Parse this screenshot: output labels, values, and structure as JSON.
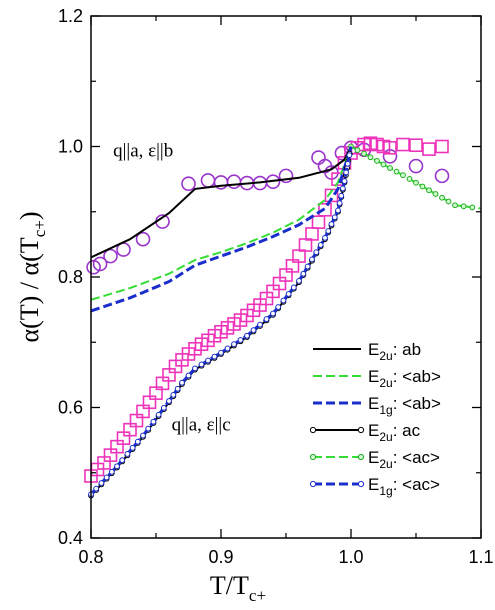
{
  "chart_data": {
    "type": "line",
    "xlabel": "T/T",
    "xlabel_sub": "c+",
    "ylabel": "α(T) / α(T",
    "ylabel_sub": "c+",
    "ylabel_close": ")",
    "xlim": [
      0.8,
      1.1
    ],
    "ylim": [
      0.4,
      1.2
    ],
    "xticks": [
      "0.8",
      "0.9",
      "1.0",
      "1.1"
    ],
    "yticks": [
      "0.4",
      "0.6",
      "0.8",
      "1.0",
      "1.2"
    ],
    "grid": false,
    "legend_position": "bottom-right",
    "annotations": [
      {
        "text": "q||a, ε||b",
        "x": 0.817,
        "y": 0.985
      },
      {
        "text": "q||a, ε||c",
        "x": 0.862,
        "y": 0.565
      }
    ],
    "series": [
      {
        "legend_base": "E",
        "legend_sub": "2u",
        "legend_rest": ": ab",
        "color": "#000000",
        "dash": "solid",
        "marker": "none",
        "x": [
          0.8,
          0.83,
          0.86,
          0.88,
          0.9,
          0.93,
          0.96,
          0.985,
          0.995,
          1.0
        ],
        "y": [
          0.83,
          0.858,
          0.898,
          0.935,
          0.94,
          0.945,
          0.952,
          0.965,
          0.98,
          1.0
        ]
      },
      {
        "legend_base": "E",
        "legend_sub": "2u",
        "legend_rest": ": <ab>",
        "color": "#33dd33",
        "dash": "dashed",
        "marker": "none",
        "x": [
          0.8,
          0.83,
          0.86,
          0.88,
          0.9,
          0.92,
          0.94,
          0.96,
          0.98,
          0.99,
          1.0
        ],
        "y": [
          0.765,
          0.783,
          0.805,
          0.826,
          0.838,
          0.852,
          0.868,
          0.888,
          0.918,
          0.945,
          1.0
        ]
      },
      {
        "legend_base": "E",
        "legend_sub": "1g",
        "legend_rest": ": <ab>",
        "color": "#1a2ecc",
        "dash": "dashed",
        "marker": "none",
        "x": [
          0.8,
          0.83,
          0.86,
          0.88,
          0.9,
          0.92,
          0.94,
          0.96,
          0.98,
          0.99,
          1.0
        ],
        "y": [
          0.748,
          0.768,
          0.793,
          0.818,
          0.832,
          0.846,
          0.862,
          0.88,
          0.905,
          0.935,
          1.0
        ]
      },
      {
        "legend_base": "E",
        "legend_sub": "2u",
        "legend_rest": ": ac",
        "color": "#000000",
        "dash": "solid",
        "marker": "circle-open",
        "x": [
          0.8,
          0.82,
          0.84,
          0.86,
          0.87,
          0.88,
          0.9,
          0.92,
          0.94,
          0.96,
          0.98,
          0.99,
          0.995,
          1.0
        ],
        "y": [
          0.465,
          0.508,
          0.555,
          0.608,
          0.636,
          0.658,
          0.682,
          0.708,
          0.742,
          0.792,
          0.858,
          0.9,
          0.945,
          1.0
        ]
      },
      {
        "legend_base": "E",
        "legend_sub": "2u",
        "legend_rest": ": <ac>",
        "color": "#33dd33",
        "dash": "dashed",
        "marker": "circle-green",
        "x": [
          1.0,
          1.02,
          1.04,
          1.06,
          1.08,
          1.1
        ],
        "y": [
          1.0,
          0.978,
          0.956,
          0.933,
          0.91,
          0.905
        ]
      },
      {
        "legend_base": "E",
        "legend_sub": "1g",
        "legend_rest": ": <ac>",
        "color": "#1a2ecc",
        "dash": "dashed",
        "marker": "circle-blue",
        "x": [
          0.8,
          0.82,
          0.84,
          0.86,
          0.87,
          0.88,
          0.9,
          0.92,
          0.94,
          0.96,
          0.98,
          0.99,
          0.995,
          1.0
        ],
        "y": [
          0.467,
          0.51,
          0.557,
          0.61,
          0.638,
          0.66,
          0.684,
          0.71,
          0.744,
          0.794,
          0.86,
          0.902,
          0.947,
          1.0
        ]
      }
    ],
    "scatter_series": [
      {
        "marker": "circle-open",
        "color": "#9933cc",
        "x": [
          0.802,
          0.807,
          0.815,
          0.825,
          0.84,
          0.855,
          0.875,
          0.89,
          0.9,
          0.91,
          0.92,
          0.93,
          0.94,
          0.95,
          0.975,
          0.98,
          0.985,
          0.993,
          1.0,
          1.01,
          1.03,
          1.05,
          1.07
        ],
        "y": [
          0.815,
          0.82,
          0.832,
          0.842,
          0.858,
          0.885,
          0.943,
          0.948,
          0.945,
          0.946,
          0.944,
          0.944,
          0.946,
          0.955,
          0.983,
          0.97,
          0.96,
          0.99,
          0.998,
          0.995,
          0.985,
          0.97,
          0.955
        ]
      },
      {
        "marker": "square-open",
        "color": "#ee33bb",
        "x": [
          0.8,
          0.805,
          0.81,
          0.815,
          0.82,
          0.825,
          0.83,
          0.835,
          0.84,
          0.845,
          0.85,
          0.855,
          0.86,
          0.865,
          0.87,
          0.875,
          0.88,
          0.885,
          0.89,
          0.895,
          0.9,
          0.905,
          0.91,
          0.915,
          0.92,
          0.925,
          0.93,
          0.935,
          0.94,
          0.945,
          0.95,
          0.955,
          0.96,
          0.965,
          0.97,
          0.975,
          0.98,
          0.985,
          0.99,
          0.995,
          1.0,
          1.005,
          1.01,
          1.015,
          1.02,
          1.025,
          1.03,
          1.04,
          1.05,
          1.06,
          1.07
        ],
        "y": [
          0.495,
          0.505,
          0.515,
          0.527,
          0.54,
          0.553,
          0.566,
          0.58,
          0.594,
          0.608,
          0.622,
          0.637,
          0.65,
          0.663,
          0.673,
          0.682,
          0.69,
          0.697,
          0.703,
          0.71,
          0.716,
          0.722,
          0.728,
          0.734,
          0.741,
          0.749,
          0.757,
          0.767,
          0.778,
          0.79,
          0.803,
          0.817,
          0.832,
          0.849,
          0.866,
          0.884,
          0.903,
          0.925,
          0.95,
          0.975,
          0.99,
          0.998,
          1.003,
          1.005,
          1.003,
          1.0,
          0.998,
          1.003,
          1.002,
          0.996,
          1.0
        ]
      }
    ]
  }
}
